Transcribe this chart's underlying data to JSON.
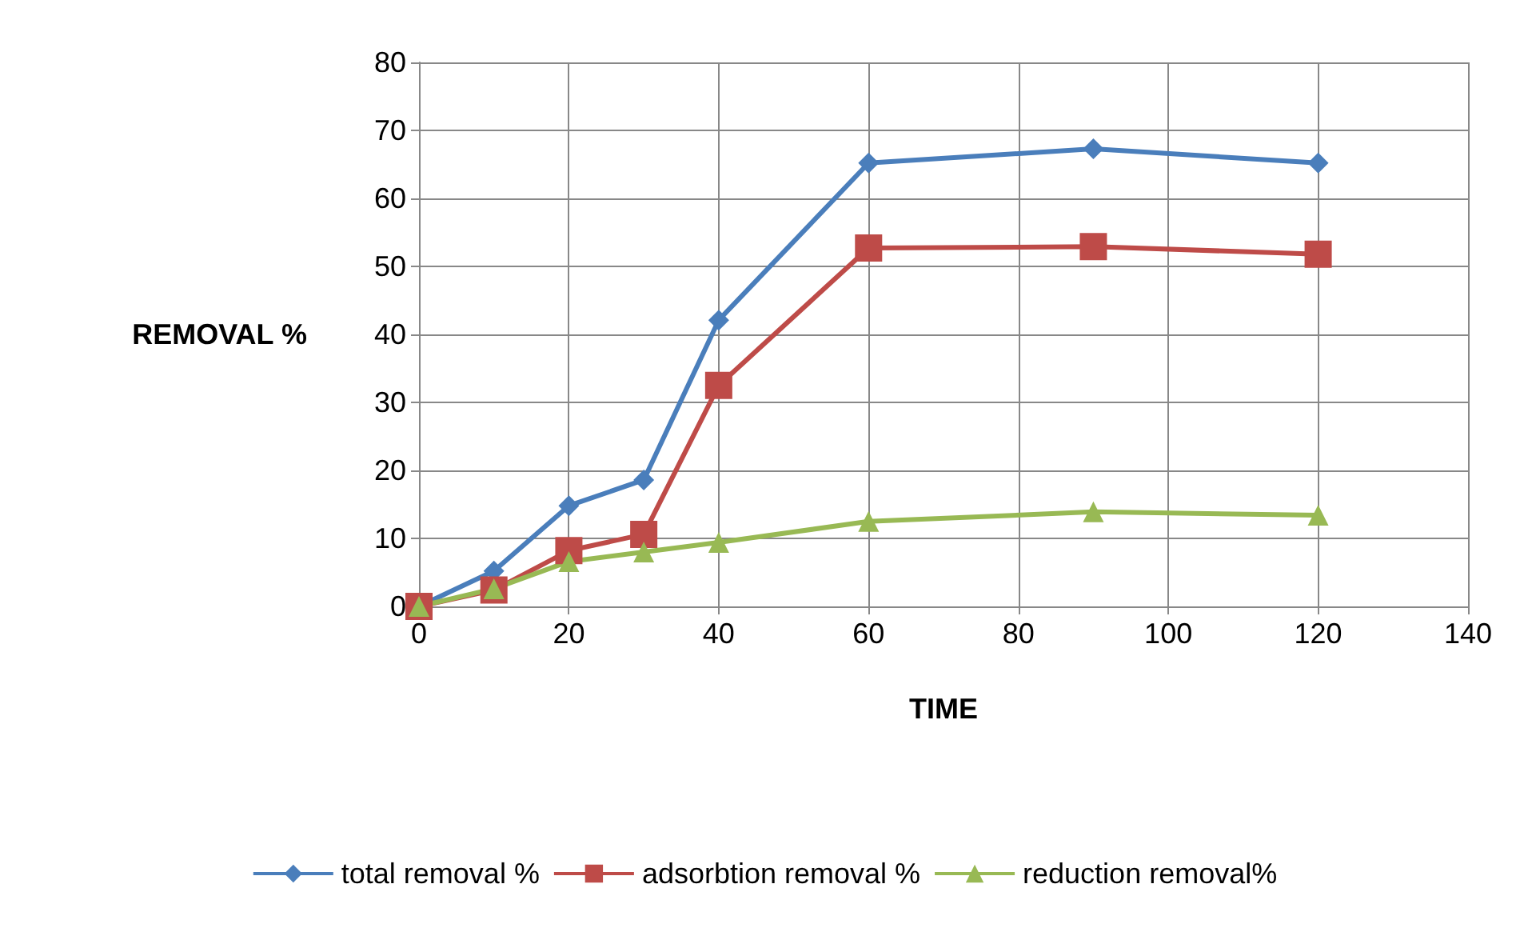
{
  "chart_data": {
    "type": "line",
    "xlabel": "TIME",
    "ylabel": "REMOVAL %",
    "x": [
      0,
      10,
      20,
      30,
      40,
      60,
      90,
      120
    ],
    "series": [
      {
        "name": "total removal %",
        "color": "#4a7ebb",
        "marker": "diamond",
        "values": [
          0,
          5.2,
          14.8,
          18.6,
          42.1,
          65.2,
          67.3,
          65.2
        ]
      },
      {
        "name": "adsorbtion removal %",
        "color": "#be4b48",
        "marker": "square",
        "values": [
          0,
          2.4,
          8.2,
          10.6,
          32.5,
          52.7,
          52.9,
          51.8
        ]
      },
      {
        "name": "reduction removal%",
        "color": "#98b954",
        "marker": "triangle",
        "values": [
          0,
          2.6,
          6.6,
          8,
          9.4,
          12.5,
          13.9,
          13.4
        ]
      }
    ],
    "xlim": [
      0,
      140
    ],
    "xticks": [
      0,
      20,
      40,
      60,
      80,
      100,
      120,
      140
    ],
    "ylim": [
      0,
      80
    ],
    "yticks": [
      0,
      10,
      20,
      30,
      40,
      50,
      60,
      70,
      80
    ],
    "grid": true,
    "legend": "bottom",
    "line_style": "solid"
  }
}
